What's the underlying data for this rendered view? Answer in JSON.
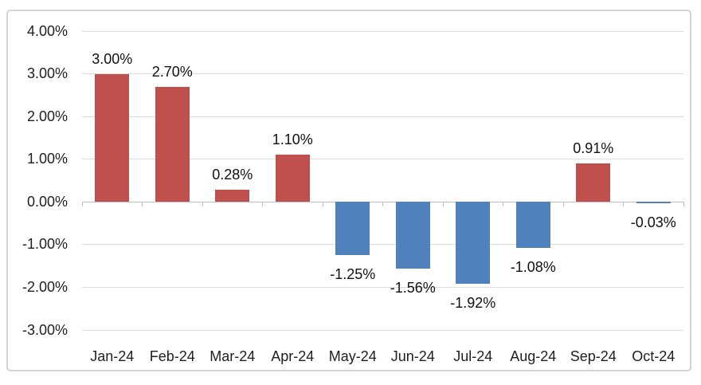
{
  "chart_data": {
    "type": "bar",
    "title": "",
    "xlabel": "",
    "ylabel": "",
    "categories": [
      "Jan-24",
      "Feb-24",
      "Mar-24",
      "Apr-24",
      "May-24",
      "Jun-24",
      "Jul-24",
      "Aug-24",
      "Sep-24",
      "Oct-24"
    ],
    "values": [
      3.0,
      2.7,
      0.28,
      1.1,
      -1.25,
      -1.56,
      -1.92,
      -1.08,
      0.91,
      -0.03
    ],
    "bar_labels": [
      "3.00%",
      "2.70%",
      "0.28%",
      "1.10%",
      "-1.25%",
      "-1.56%",
      "-1.92%",
      "-1.08%",
      "0.91%",
      "-0.03%"
    ],
    "ylim": [
      -3,
      4
    ],
    "ytick_values": [
      4,
      3,
      2,
      1,
      0,
      -1,
      -2,
      -3
    ],
    "ytick_labels": [
      "4.00%",
      "3.00%",
      "2.00%",
      "1.00%",
      "0.00%",
      "-1.00%",
      "-2.00%",
      "-3.00%"
    ],
    "grid": true,
    "legend": false,
    "colors": {
      "positive": "#c0504d",
      "negative": "#4f81bd",
      "gridline": "#dcdcdc",
      "axis": "#bfbfbf",
      "text": "#1f1f1f",
      "frame_border": "#d4d4d4"
    }
  }
}
